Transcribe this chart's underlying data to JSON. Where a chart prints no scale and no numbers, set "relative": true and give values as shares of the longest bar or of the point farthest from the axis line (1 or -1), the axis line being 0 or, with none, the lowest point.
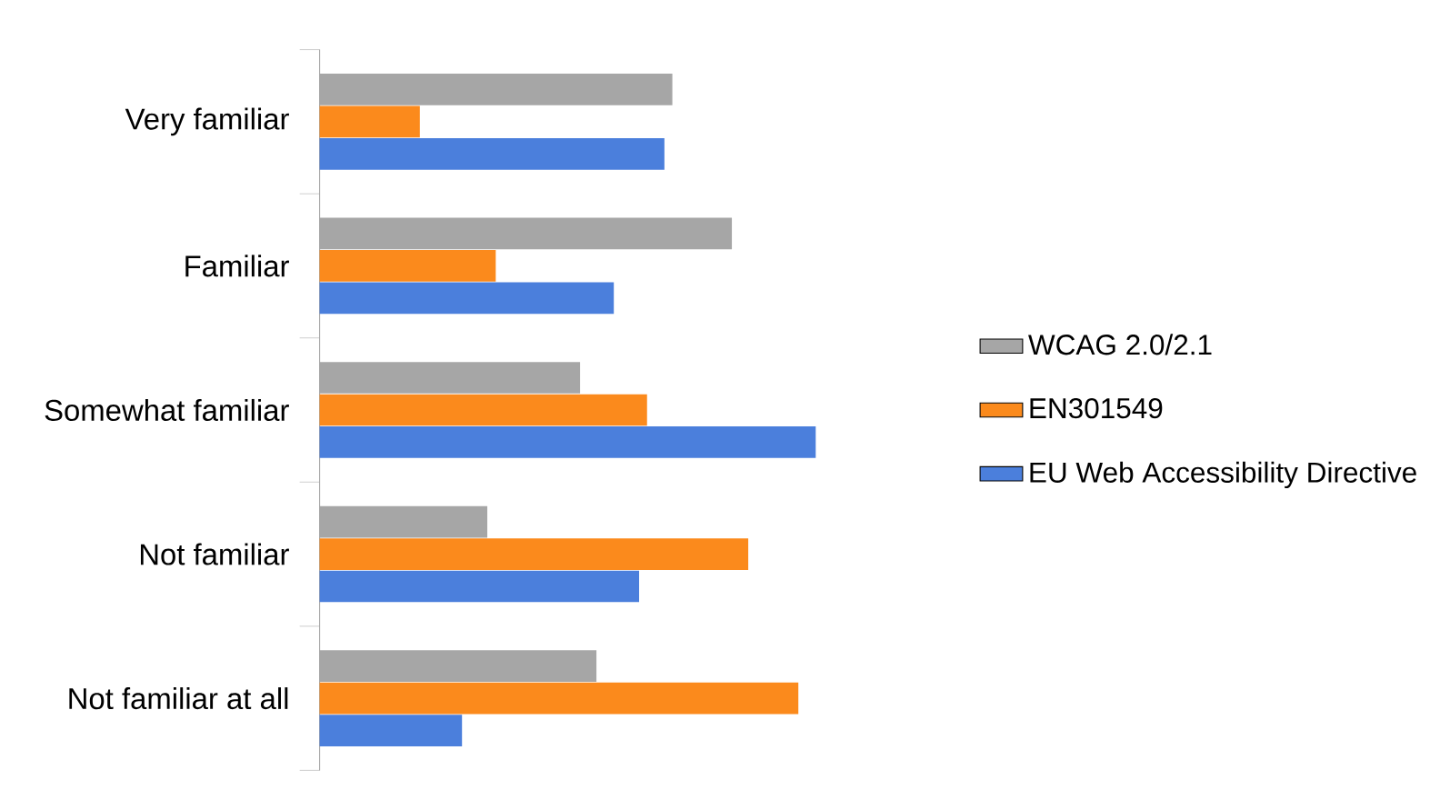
{
  "chart_data": {
    "type": "bar",
    "orientation": "horizontal",
    "relative": true,
    "legend": "right",
    "categories": [
      "Very familiar",
      "Familiar",
      "Somewhat familiar",
      "Not familiar",
      "Not familiar at all"
    ],
    "series": [
      {
        "name": "WCAG 2.0/2.1",
        "color": "#a6a6a6",
        "values": [
          0.711,
          0.831,
          0.525,
          0.338,
          0.558
        ]
      },
      {
        "name": "EN301549",
        "color": "#fb8a1c",
        "values": [
          0.202,
          0.355,
          0.66,
          0.864,
          0.965
        ]
      },
      {
        "name": "EU Web Accessibility Directive",
        "color": "#4b7fdc",
        "values": [
          0.695,
          0.593,
          1,
          0.644,
          0.287
        ]
      }
    ]
  }
}
